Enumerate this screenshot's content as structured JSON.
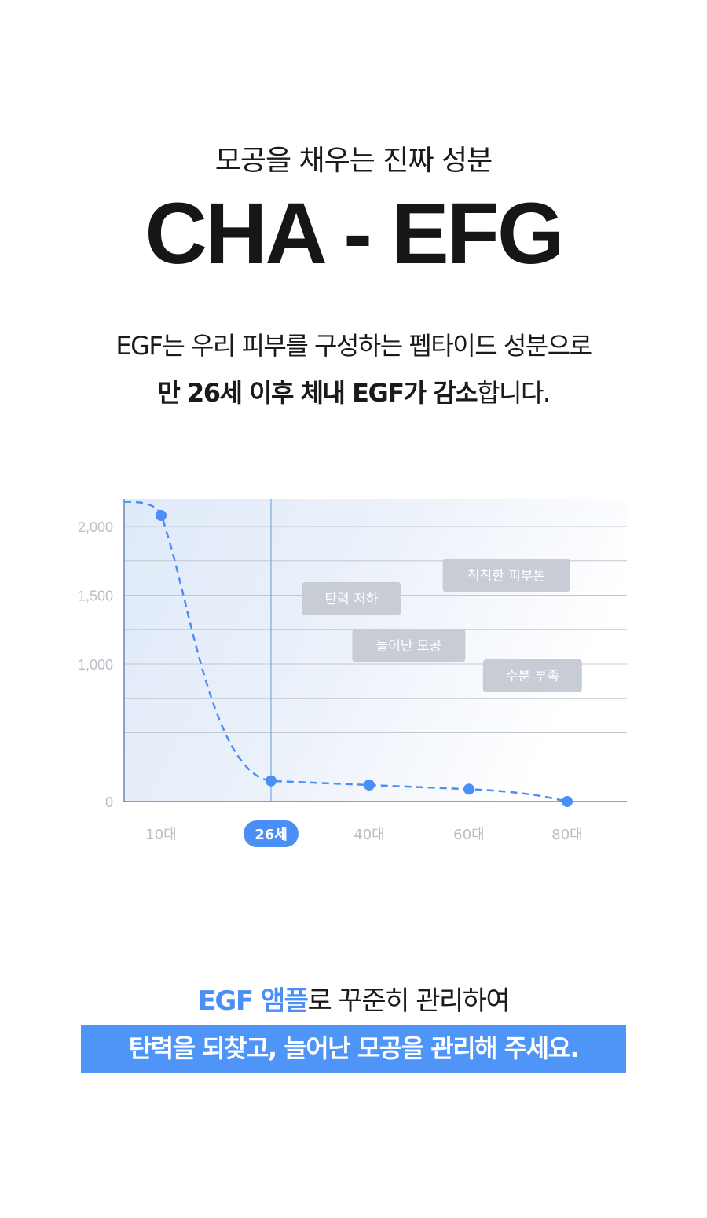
{
  "header": {
    "subtitle": "모공을 채우는 진짜 성분",
    "title": "CHA - EFG"
  },
  "description": {
    "line1": "EGF는 우리 피부를 구성하는 펩타이드 성분으로",
    "line2_bold": "만 26세 이후 체내 EGF가 감소",
    "line2_rest": "합니다."
  },
  "chart_data": {
    "type": "line",
    "title": "",
    "xlabel": "",
    "ylabel": "",
    "categories": [
      "10대",
      "26세",
      "40대",
      "60대",
      "80대"
    ],
    "highlight_category": "26세",
    "values": [
      2080,
      150,
      120,
      90,
      0
    ],
    "ylim": [
      0,
      2200
    ],
    "y_ticks": [
      0,
      1000,
      1500,
      2000
    ],
    "y_tick_labels": [
      "0",
      "1,000",
      "1,500",
      "2,000"
    ],
    "grid": true,
    "line_style": "dashed",
    "colors": {
      "line": "#4b8ef5",
      "highlight_pill": "#4b8ef5",
      "tag_bg": "#c7ccd5",
      "grid": "#c3c8d0"
    },
    "annotations": [
      {
        "text": "칙칙한 피부톤",
        "x": 64,
        "y": 1650
      },
      {
        "text": "탄력 저하",
        "x": 36,
        "y": 1480
      },
      {
        "text": "늘어난 모공",
        "x": 46,
        "y": 1140
      },
      {
        "text": "수분 부족",
        "x": 72,
        "y": 920
      }
    ]
  },
  "footer": {
    "line1_accent": "EGF 앰플",
    "line1_rest": "로 꾸준히 관리하여",
    "line2": "탄력을 되찾고, 늘어난 모공을 관리해 주세요."
  }
}
